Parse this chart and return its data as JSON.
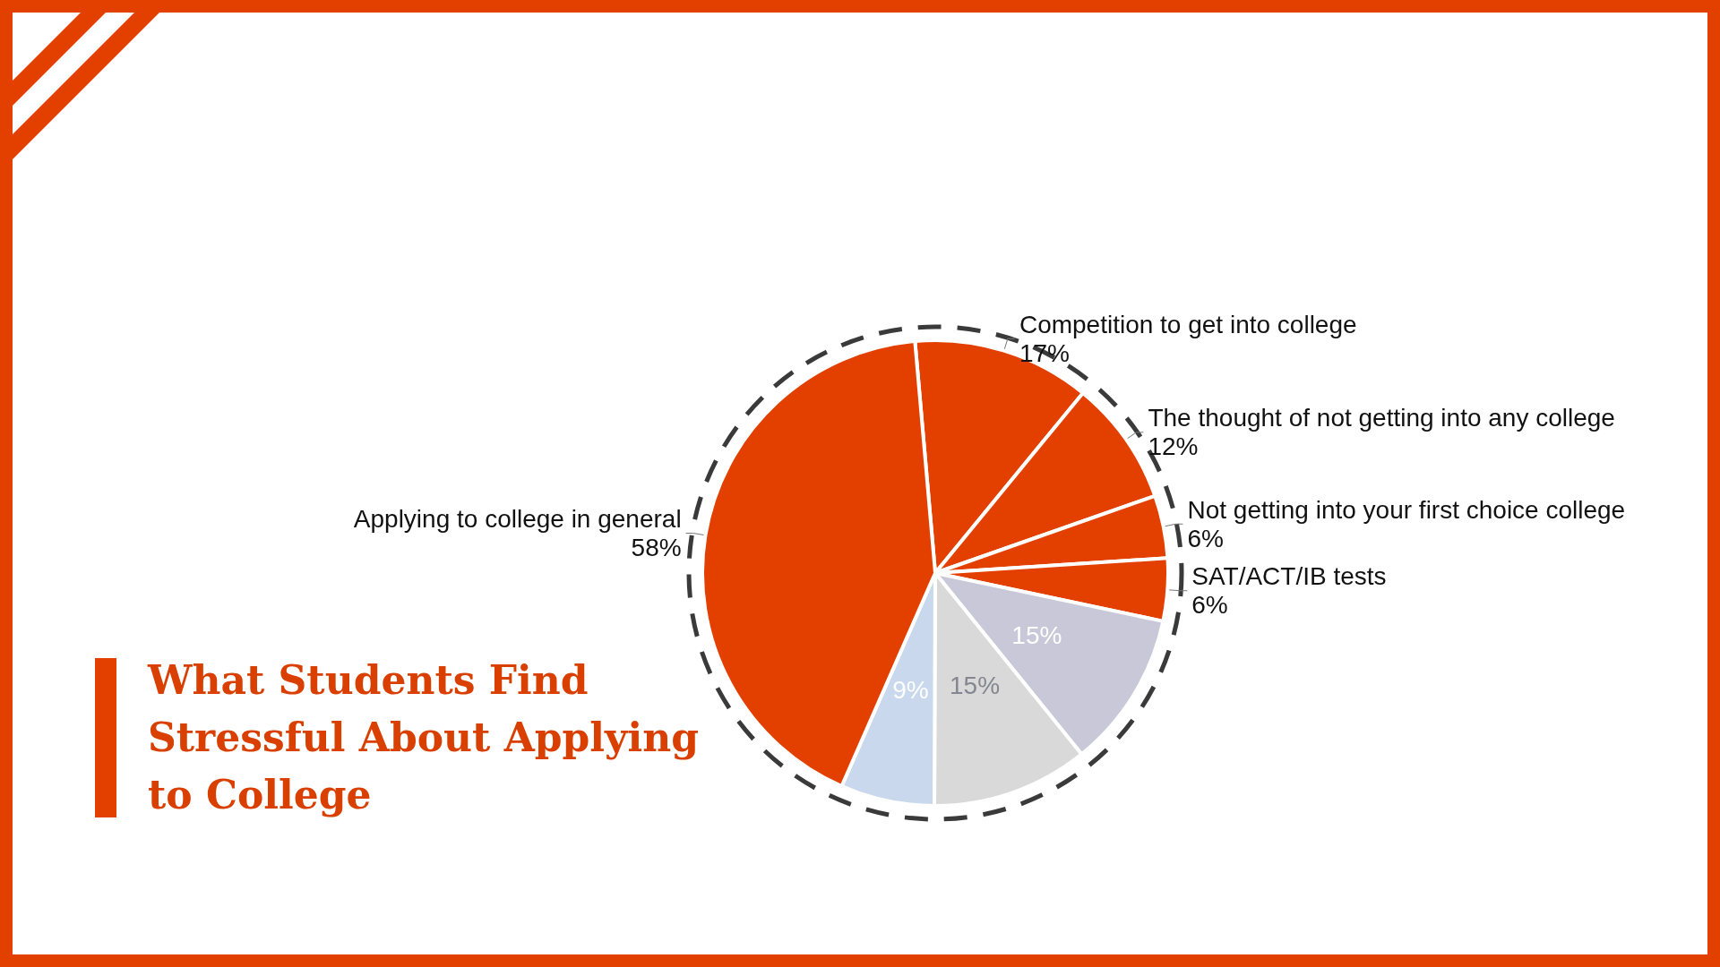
{
  "chart_data": {
    "type": "pie",
    "title": "What Students Find Stressful About Applying to College",
    "categories": [
      "Competition to get into college",
      "The thought of not getting into any college",
      "Not getting into your first choice college",
      "SAT/ACT/IB tests",
      null,
      null,
      null,
      "Applying to college in general"
    ],
    "values": [
      17,
      12,
      6,
      6,
      15,
      15,
      9,
      58
    ],
    "value_labels": [
      "17%",
      "12%",
      "6%",
      "6%",
      "15%",
      "15%",
      "9%",
      "58%"
    ],
    "colors": [
      "#e34000",
      "#e34000",
      "#e34000",
      "#e34000",
      "#c8c8d9",
      "#d9d9d9",
      "#c9d8ec",
      "#e34000"
    ],
    "legend": false
  }
}
